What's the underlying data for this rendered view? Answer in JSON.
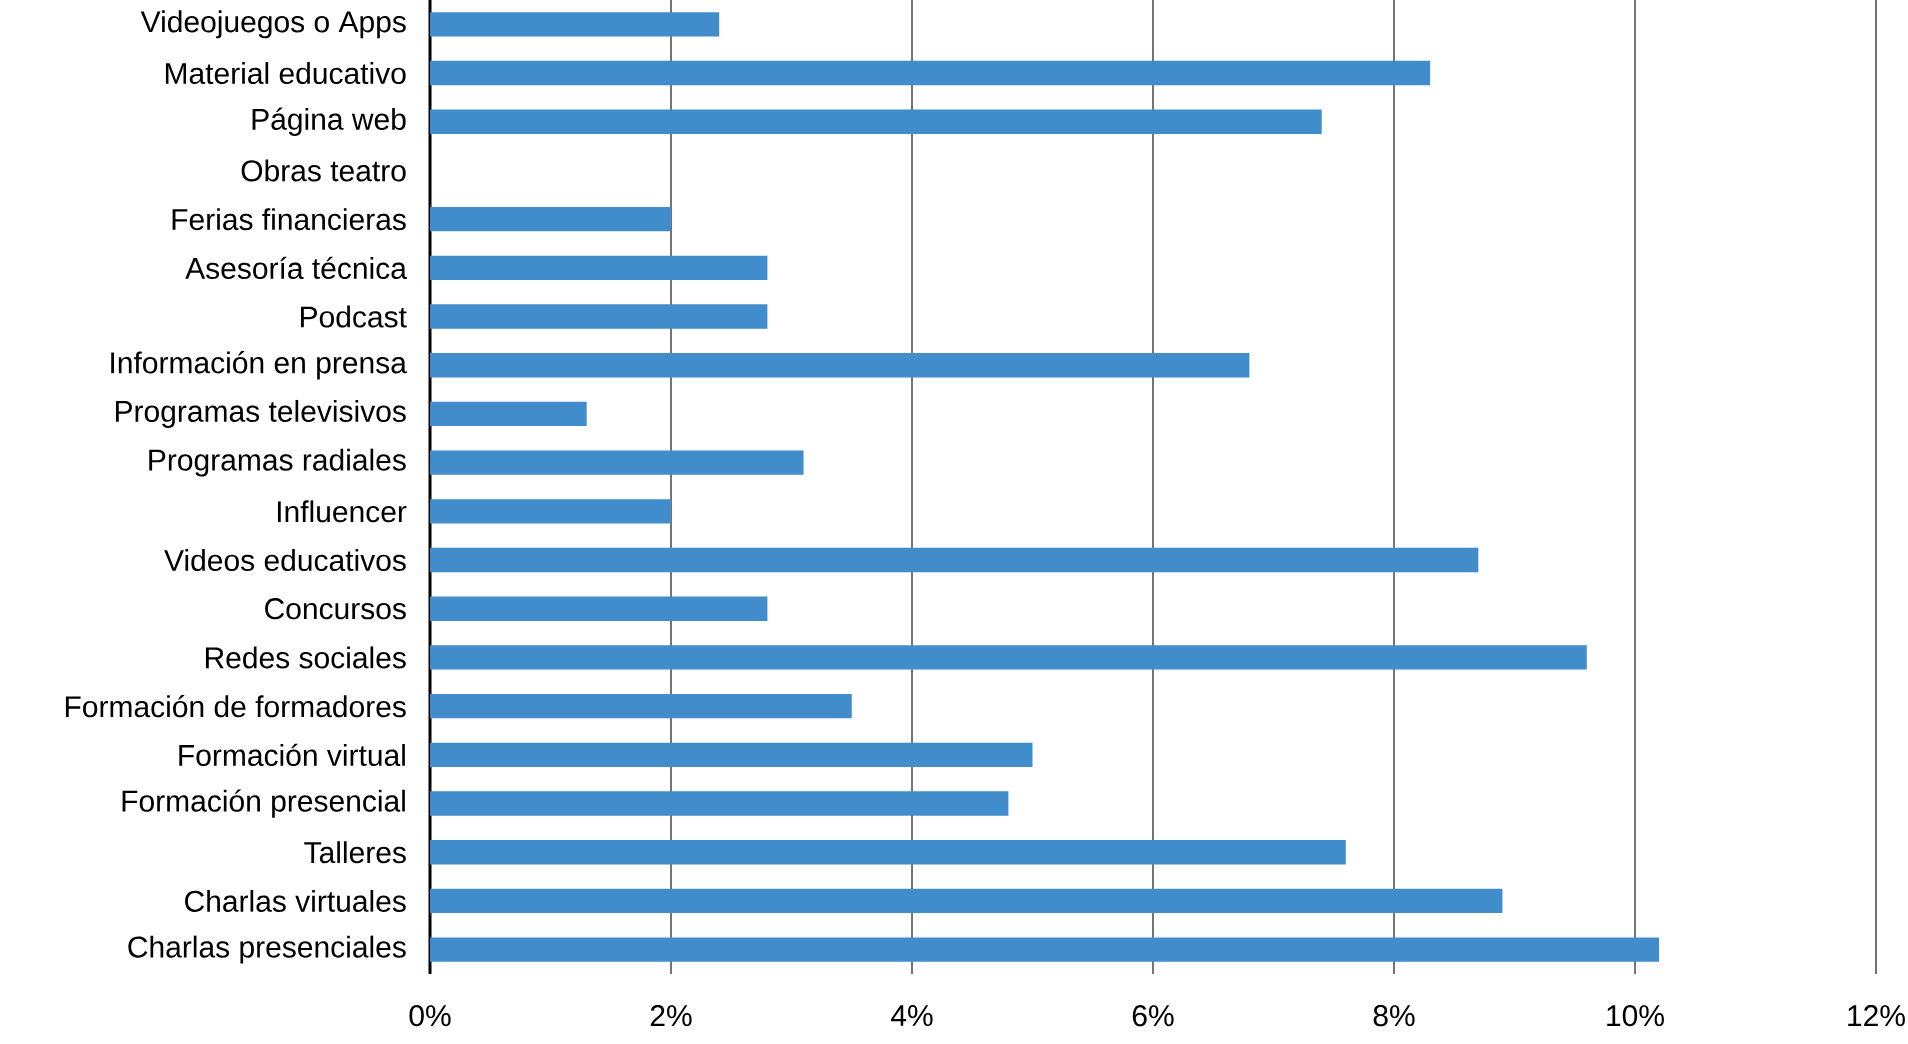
{
  "chart_data": {
    "type": "bar",
    "orientation": "horizontal",
    "categories": [
      "Videojuegos o Apps",
      "Material educativo",
      "Página web",
      "Obras teatro",
      "Ferias financieras",
      "Asesoría técnica",
      "Podcast",
      "Información en prensa",
      "Programas televisivos",
      "Programas radiales",
      "Influencer",
      "Videos educativos",
      "Concursos",
      "Redes sociales",
      "Formación de formadores",
      "Formación virtual",
      "Formación presencial",
      "Talleres",
      "Charlas virtuales",
      "Charlas presenciales"
    ],
    "values": [
      2.4,
      8.3,
      7.4,
      0,
      2.0,
      2.8,
      2.8,
      6.8,
      1.3,
      3.1,
      2.0,
      8.7,
      2.8,
      9.6,
      3.5,
      5.0,
      4.8,
      7.6,
      8.9,
      10.2
    ],
    "color": "#418ccb",
    "xlim": [
      0,
      12
    ],
    "xticks": [
      {
        "value": 0,
        "label": "0%"
      },
      {
        "value": 2,
        "label": "2%"
      },
      {
        "value": 4,
        "label": "4%"
      },
      {
        "value": 6,
        "label": "6%"
      },
      {
        "value": 8,
        "label": "8%"
      },
      {
        "value": 10,
        "label": "10%"
      },
      {
        "value": 12,
        "label": "12%"
      }
    ],
    "grid": "x"
  }
}
